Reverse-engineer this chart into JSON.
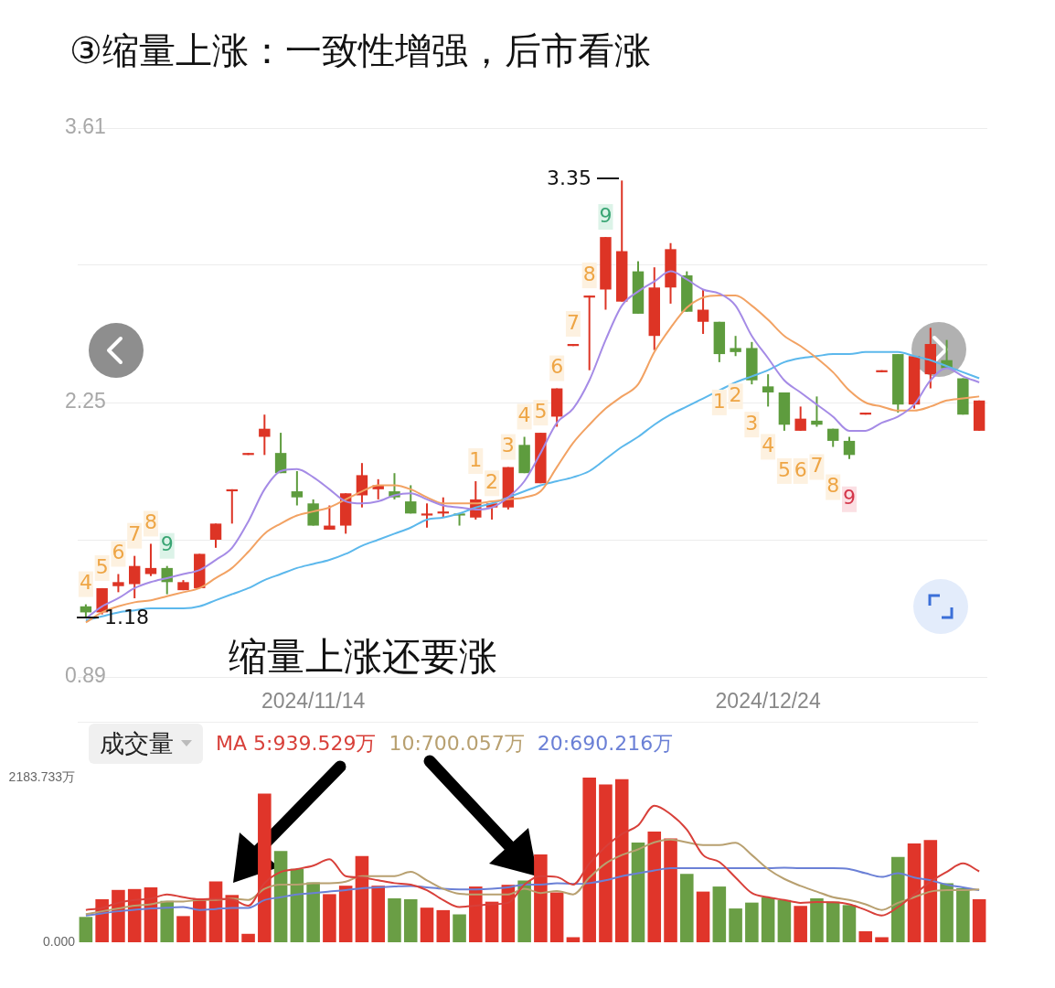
{
  "chart_data": [
    {
      "type": "candlestick",
      "title": "③缩量上涨：一致性增强，后市看涨",
      "categories": [
        null,
        null,
        null,
        null,
        null,
        null,
        null,
        null,
        null,
        null,
        null,
        null,
        null,
        null,
        "2024/11/14",
        null,
        null,
        null,
        null,
        null,
        null,
        null,
        null,
        null,
        null,
        null,
        null,
        null,
        null,
        null,
        null,
        null,
        null,
        null,
        null,
        null,
        null,
        null,
        null,
        null,
        null,
        null,
        "2024/12/24",
        null,
        null,
        null,
        null,
        null,
        null,
        null,
        null,
        null,
        null,
        null,
        null,
        null
      ],
      "ylim": [
        0.89,
        3.61
      ],
      "yticks": [
        0.89,
        {
          "value": 1.57,
          "label": null
        },
        2.25,
        {
          "value": 2.93,
          "label": null
        },
        3.61
      ],
      "grid": "y",
      "annotations": [
        "缩量上涨还要涨",
        "3.35",
        "1.18"
      ],
      "series": [
        {
          "ohlc": [
            [
              1.24,
              1.25,
              1.18,
              1.21
            ],
            [
              1.21,
              1.33,
              1.2,
              1.33
            ],
            [
              1.34,
              1.4,
              1.31,
              1.36
            ],
            [
              1.35,
              1.49,
              1.28,
              1.44
            ],
            [
              1.4,
              1.55,
              1.39,
              1.43
            ],
            [
              1.43,
              1.44,
              1.3,
              1.36
            ],
            [
              1.32,
              1.37,
              1.32,
              1.36
            ],
            [
              1.33,
              1.5,
              1.33,
              1.5
            ],
            [
              1.57,
              1.65,
              1.53,
              1.65
            ],
            [
              1.81,
              1.82,
              1.65,
              1.82
            ],
            [
              1.99,
              2.0,
              1.99,
              2.0
            ],
            [
              2.08,
              2.19,
              1.99,
              2.12
            ],
            [
              2.0,
              2.1,
              1.9,
              1.9
            ],
            [
              1.81,
              1.91,
              1.74,
              1.78
            ],
            [
              1.75,
              1.77,
              1.64,
              1.64
            ],
            [
              1.62,
              1.74,
              1.62,
              1.64
            ],
            [
              1.64,
              1.8,
              1.6,
              1.8
            ],
            [
              1.79,
              1.95,
              1.73,
              1.89
            ],
            [
              1.82,
              1.87,
              1.77,
              1.84
            ],
            [
              1.81,
              1.9,
              1.77,
              1.78
            ],
            [
              1.76,
              1.84,
              1.7,
              1.7
            ],
            [
              1.69,
              1.75,
              1.63,
              1.7
            ],
            [
              1.7,
              1.78,
              1.68,
              1.71
            ],
            [
              1.7,
              1.7,
              1.64,
              1.69
            ],
            [
              1.68,
              1.86,
              1.67,
              1.77
            ],
            [
              1.73,
              1.75,
              1.67,
              1.75
            ],
            [
              1.73,
              1.93,
              1.72,
              1.93
            ],
            [
              2.04,
              2.08,
              1.9,
              1.9
            ],
            [
              1.85,
              2.1,
              1.85,
              2.1
            ],
            [
              2.18,
              2.32,
              2.13,
              2.32
            ],
            [
              2.53,
              2.54,
              2.53,
              2.54
            ],
            [
              2.77,
              2.78,
              2.41,
              2.78
            ],
            [
              2.81,
              3.07,
              2.71,
              3.07
            ],
            [
              2.75,
              3.35,
              2.75,
              3.0
            ],
            [
              2.9,
              2.95,
              2.69,
              2.69
            ],
            [
              2.58,
              2.92,
              2.51,
              2.82
            ],
            [
              2.82,
              3.04,
              2.74,
              3.01
            ],
            [
              2.88,
              2.9,
              2.7,
              2.7
            ],
            [
              2.65,
              2.81,
              2.59,
              2.71
            ],
            [
              2.65,
              2.65,
              2.45,
              2.49
            ],
            [
              2.52,
              2.58,
              2.48,
              2.5
            ],
            [
              2.52,
              2.55,
              2.34,
              2.36
            ],
            [
              2.33,
              2.39,
              2.23,
              2.3
            ],
            [
              2.3,
              2.3,
              2.11,
              2.14
            ],
            [
              2.11,
              2.23,
              2.11,
              2.17
            ],
            [
              2.16,
              2.28,
              2.13,
              2.14
            ],
            [
              2.12,
              2.12,
              2.03,
              2.06
            ],
            [
              2.06,
              2.08,
              1.97,
              1.99
            ],
            [
              2.19,
              2.2,
              2.19,
              2.2
            ],
            [
              2.4,
              2.41,
              2.4,
              2.41
            ],
            [
              2.49,
              2.49,
              2.2,
              2.24
            ],
            [
              2.24,
              2.48,
              2.22,
              2.48
            ],
            [
              2.39,
              2.62,
              2.32,
              2.54
            ],
            [
              2.46,
              2.56,
              2.42,
              2.42
            ],
            [
              2.37,
              2.37,
              2.19,
              2.19
            ],
            [
              2.11,
              2.26,
              2.11,
              2.26
            ]
          ],
          "colors": [
            "#5e9c3e",
            "#dd3425",
            "#dd3425",
            "#dd3425",
            "#dd3425",
            "#5e9c3e",
            "#dd3425",
            "#dd3425",
            "#dd3425",
            "#dd3425",
            "#dd3425",
            "#dd3425",
            "#5e9c3e",
            "#5e9c3e",
            "#5e9c3e",
            "#dd3425",
            "#dd3425",
            "#dd3425",
            "#dd3425",
            "#5e9c3e",
            "#5e9c3e",
            "#dd3425",
            "#dd3425",
            "#5e9c3e",
            "#dd3425",
            "#dd3425",
            "#dd3425",
            "#5e9c3e",
            "#dd3425",
            "#dd3425",
            "#dd3425",
            "#dd3425",
            "#dd3425",
            "#dd3425",
            "#5e9c3e",
            "#dd3425",
            "#dd3425",
            "#5e9c3e",
            "#dd3425",
            "#5e9c3e",
            "#5e9c3e",
            "#5e9c3e",
            "#5e9c3e",
            "#5e9c3e",
            "#dd3425",
            "#5e9c3e",
            "#5e9c3e",
            "#5e9c3e",
            "#dd3425",
            "#dd3425",
            "#5e9c3e",
            "#dd3425",
            "#dd3425",
            "#5e9c3e",
            "#5e9c3e",
            "#dd3425"
          ],
          "value_labels": [
            "4",
            "5",
            "6",
            "7",
            "8",
            "9",
            null,
            null,
            null,
            null,
            null,
            null,
            null,
            null,
            null,
            null,
            null,
            null,
            null,
            null,
            null,
            null,
            null,
            null,
            "1",
            "2",
            "3",
            "4",
            "5",
            "6",
            "7",
            "8",
            "9",
            null,
            null,
            null,
            null,
            null,
            null,
            "1",
            "2",
            "3",
            "4",
            "5",
            "6",
            "7",
            "8",
            "9",
            null,
            null,
            null,
            null,
            null,
            null,
            null,
            null
          ]
        },
        {
          "type": "line",
          "color": "#a58be6",
          "values": [
            1.18,
            1.24,
            1.28,
            1.33,
            1.36,
            1.38,
            1.4,
            1.42,
            1.47,
            1.53,
            1.66,
            1.82,
            1.91,
            1.92,
            1.88,
            1.82,
            1.76,
            1.75,
            1.76,
            1.79,
            1.8,
            1.77,
            1.74,
            1.73,
            1.72,
            1.73,
            1.78,
            1.86,
            2.0,
            2.15,
            2.22,
            2.36,
            2.56,
            2.73,
            2.8,
            2.85,
            2.9,
            2.86,
            2.81,
            2.79,
            2.73,
            2.58,
            2.47,
            2.36,
            2.3,
            2.24,
            2.18,
            2.11,
            2.11,
            2.15,
            2.18,
            2.24,
            2.36,
            2.42,
            2.38,
            2.35
          ]
        },
        {
          "type": "line",
          "color": "#f2a263",
          "values": [
            1.16,
            1.21,
            1.24,
            1.26,
            1.27,
            1.29,
            1.31,
            1.33,
            1.38,
            1.43,
            1.51,
            1.6,
            1.65,
            1.69,
            1.71,
            1.73,
            1.77,
            1.81,
            1.84,
            1.84,
            1.82,
            1.78,
            1.75,
            1.75,
            1.75,
            1.76,
            1.77,
            1.78,
            1.81,
            1.93,
            2.05,
            2.14,
            2.22,
            2.28,
            2.34,
            2.5,
            2.62,
            2.72,
            2.77,
            2.78,
            2.78,
            2.73,
            2.66,
            2.58,
            2.53,
            2.47,
            2.4,
            2.31,
            2.25,
            2.23,
            2.21,
            2.21,
            2.23,
            2.26,
            2.27,
            2.28
          ]
        },
        {
          "type": "line",
          "color": "#5cb8ec",
          "values": [
            1.17,
            1.19,
            1.21,
            1.22,
            1.23,
            1.23,
            1.23,
            1.24,
            1.27,
            1.3,
            1.33,
            1.37,
            1.4,
            1.43,
            1.45,
            1.47,
            1.5,
            1.54,
            1.57,
            1.6,
            1.63,
            1.67,
            1.68,
            1.7,
            1.73,
            1.75,
            1.78,
            1.81,
            1.84,
            1.86,
            1.88,
            1.91,
            1.97,
            2.03,
            2.08,
            2.14,
            2.19,
            2.23,
            2.27,
            2.31,
            2.35,
            2.38,
            2.41,
            2.45,
            2.47,
            2.48,
            2.49,
            2.49,
            2.5,
            2.5,
            2.5,
            2.48,
            2.46,
            2.43,
            2.4,
            2.37
          ]
        }
      ]
    },
    {
      "type": "bar",
      "legend_title": "成交量",
      "legend": "top left",
      "tick_labels": "y",
      "categories": [
        null,
        null,
        null,
        null,
        null,
        null,
        null,
        null,
        null,
        null,
        null,
        null,
        null,
        null,
        "2024/11/14",
        null,
        null,
        null,
        null,
        null,
        null,
        null,
        null,
        null,
        null,
        null,
        null,
        null,
        null,
        null,
        null,
        null,
        null,
        null,
        null,
        null,
        null,
        null,
        null,
        null,
        null,
        null,
        "2024/12/24",
        null,
        null,
        null,
        null,
        null,
        null,
        null,
        null,
        null,
        null,
        null,
        null,
        null
      ],
      "ylim": [
        0,
        2183.733
      ],
      "yticks": [
        {
          "value": 0,
          "label": "0.000"
        },
        {
          "value": 2183.733,
          "label": "2183.733万"
        }
      ],
      "series": [
        {
          "values": [
            336,
            571,
            694,
            706,
            728,
            549,
            347,
            571,
            806,
            627,
            112,
            1971,
            1210,
            974,
            795,
            638,
            750,
            1142,
            750,
            582,
            571,
            459,
            426,
            370,
            739,
            538,
            762,
            818,
            1165,
            661,
            67,
            2183.733,
            2094,
            2162,
            1322,
            1467,
            1378,
            907,
            672,
            739,
            448,
            526,
            594,
            560,
            482,
            582,
            538,
            493,
            146,
            67,
            1131,
            1310,
            1355,
            784,
            717,
            571
          ],
          "colors": [
            "#6a9e45",
            "#e0352a",
            "#e0352a",
            "#e0352a",
            "#e0352a",
            "#6a9e45",
            "#e0352a",
            "#e0352a",
            "#e0352a",
            "#e0352a",
            "#e0352a",
            "#e0352a",
            "#6a9e45",
            "#6a9e45",
            "#6a9e45",
            "#e0352a",
            "#e0352a",
            "#e0352a",
            "#e0352a",
            "#6a9e45",
            "#6a9e45",
            "#e0352a",
            "#e0352a",
            "#6a9e45",
            "#e0352a",
            "#e0352a",
            "#e0352a",
            "#6a9e45",
            "#e0352a",
            "#e0352a",
            "#e0352a",
            "#e0352a",
            "#e0352a",
            "#e0352a",
            "#6a9e45",
            "#e0352a",
            "#e0352a",
            "#6a9e45",
            "#e0352a",
            "#6a9e45",
            "#6a9e45",
            "#6a9e45",
            "#6a9e45",
            "#6a9e45",
            "#e0352a",
            "#6a9e45",
            "#6a9e45",
            "#6a9e45",
            "#e0352a",
            "#e0352a",
            "#6a9e45",
            "#e0352a",
            "#e0352a",
            "#6a9e45",
            "#6a9e45",
            "#e0352a"
          ]
        },
        {
          "type": "line",
          "name": "MA 5:939.529万",
          "color": "#d8403a",
          "values": [
            429,
            456,
            523,
            560,
            579,
            635,
            597,
            571,
            575,
            567,
            485,
            784,
            933,
            971,
            1016,
            1101,
            877,
            859,
            821,
            784,
            765,
            691,
            560,
            467,
            485,
            504,
            523,
            765,
            877,
            866,
            765,
            1045,
            1269,
            1437,
            1549,
            1811,
            1699,
            1493,
            1157,
            1064,
            859,
            653,
            597,
            560,
            523,
            534,
            530,
            504,
            429,
            355,
            467,
            635,
            803,
            933,
            1045,
            940
          ]
        },
        {
          "type": "line",
          "name": "10:700.057万",
          "color": "#b8a070",
          "values": [
            373,
            411,
            448,
            485,
            504,
            541,
            541,
            560,
            560,
            579,
            560,
            709,
            765,
            765,
            784,
            784,
            803,
            877,
            877,
            877,
            933,
            821,
            709,
            642,
            635,
            635,
            635,
            709,
            653,
            680,
            635,
            859,
            1045,
            1157,
            1232,
            1325,
            1363,
            1325,
            1288,
            1288,
            1318,
            1157,
            971,
            840,
            747,
            672,
            597,
            560,
            504,
            429,
            523,
            597,
            672,
            691,
            691,
            700
          ]
        },
        {
          "type": "line",
          "name": "20:690.216万",
          "color": "#6b80d6",
          "values": [
            355,
            383,
            411,
            430,
            448,
            458,
            467,
            429,
            441,
            456,
            456,
            560,
            597,
            635,
            653,
            672,
            691,
            717,
            728,
            739,
            747,
            728,
            709,
            702,
            702,
            709,
            728,
            765,
            765,
            784,
            773,
            784,
            821,
            877,
            915,
            952,
            982,
            982,
            982,
            982,
            982,
            982,
            982,
            989,
            982,
            982,
            982,
            971,
            915,
            866,
            915,
            859,
            821,
            765,
            728,
            690
          ]
        }
      ]
    }
  ]
}
